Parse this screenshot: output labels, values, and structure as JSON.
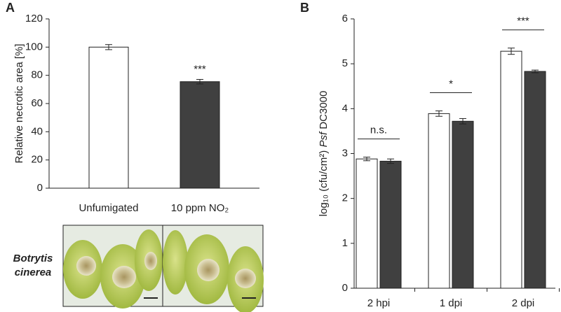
{
  "chart_data": [
    {
      "type": "bar",
      "panel": "A",
      "ylabel": "Relative  necrotic area [%]",
      "categories": [
        "Unfumigated",
        "10 ppm NO₂"
      ],
      "values": [
        100,
        75.5
      ],
      "errors": [
        1.8,
        1.6
      ],
      "colors": [
        "#ffffff",
        "#404040"
      ],
      "annotations": [
        null,
        "***"
      ],
      "ylim": [
        0,
        120
      ],
      "yticks": [
        0,
        20,
        40,
        60,
        80,
        100,
        120
      ],
      "image_label": [
        "Botrytis",
        "cinerea"
      ]
    },
    {
      "type": "grouped-bar",
      "panel": "B",
      "ylabel": [
        "log₁₀ (cfu/cm²) ",
        "Psf",
        " DC3000"
      ],
      "categories": [
        "2 hpi",
        "1 dpi",
        "2 dpi"
      ],
      "series": [
        {
          "color": "#ffffff",
          "values": [
            2.88,
            3.89,
            5.28
          ],
          "errors": [
            0.04,
            0.06,
            0.07
          ]
        },
        {
          "color": "#404040",
          "values": [
            2.83,
            3.72,
            4.83
          ],
          "errors": [
            0.05,
            0.06,
            0.03
          ]
        }
      ],
      "annotations": [
        "n.s.",
        "*",
        "***"
      ],
      "ylim": [
        0,
        6
      ],
      "yticks": [
        0,
        1,
        2,
        3,
        4,
        5,
        6
      ]
    }
  ]
}
